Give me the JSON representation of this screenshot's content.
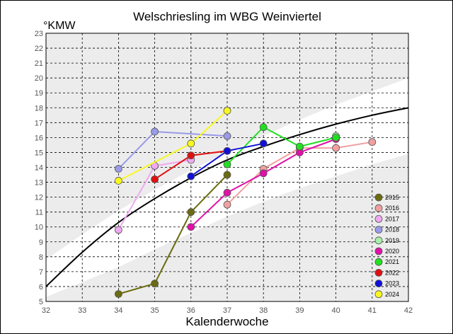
{
  "chart_data": {
    "type": "line",
    "title": "Welschriesling im WBG Weinviertel",
    "ylabel": "°KMW",
    "xlabel": "Kalenderwoche",
    "xlim": [
      32,
      42
    ],
    "ylim": [
      5,
      23
    ],
    "x_ticks": [
      32,
      33,
      34,
      35,
      36,
      37,
      38,
      39,
      40,
      41,
      42
    ],
    "y_ticks": [
      5,
      6,
      7,
      8,
      9,
      10,
      11,
      12,
      13,
      14,
      15,
      16,
      17,
      18,
      19,
      20,
      21,
      22,
      23
    ],
    "grid": true,
    "legend_position": "bottom-right",
    "band_colors": {
      "band": "#ececec",
      "background": "#ffffff",
      "grid": "#000000"
    },
    "bands": [
      {
        "x": [
          32,
          33,
          34,
          35,
          36,
          37,
          38,
          39,
          40,
          41,
          42
        ],
        "y_low": [
          7.8,
          9.5,
          11.1,
          12.5,
          13.8,
          15.0,
          16.1,
          17.2,
          18.2,
          19.1,
          20.0
        ],
        "y_high": [
          23,
          23,
          23,
          23,
          23,
          23,
          23,
          23,
          23,
          23,
          23
        ]
      },
      {
        "x": [
          32,
          33,
          34,
          35,
          36,
          37,
          38,
          39,
          40,
          41,
          42
        ],
        "y_low": [
          5,
          5,
          5,
          5,
          5,
          5,
          5,
          5,
          5,
          5,
          5
        ],
        "y_high": [
          5.3,
          6.3,
          7.3,
          8.5,
          9.6,
          10.7,
          11.7,
          12.6,
          13.4,
          14.2,
          14.9
        ]
      }
    ],
    "reference_curve": {
      "color": "#000000",
      "x": [
        32,
        33,
        34,
        35,
        36,
        37,
        38,
        39,
        40,
        41,
        42
      ],
      "y": [
        6.0,
        8.3,
        10.3,
        11.9,
        13.3,
        14.5,
        15.4,
        16.2,
        16.9,
        17.5,
        18.0
      ]
    },
    "series": [
      {
        "name": "2015",
        "color": "#6b6b10",
        "x": [
          34,
          35,
          36,
          37
        ],
        "y": [
          5.5,
          6.2,
          11.0,
          13.5
        ]
      },
      {
        "name": "2016",
        "color": "#f0a0a0",
        "x": [
          37,
          38,
          39,
          40,
          41
        ],
        "y": [
          11.5,
          13.9,
          15.3,
          15.3,
          15.7
        ]
      },
      {
        "name": "2017",
        "color": "#f0a8f0",
        "x": [
          34,
          35,
          36
        ],
        "y": [
          9.8,
          14.1,
          14.5
        ]
      },
      {
        "name": "2018",
        "color": "#9a9ae8",
        "x": [
          34,
          35,
          37
        ],
        "y": [
          13.9,
          16.4,
          16.1
        ]
      },
      {
        "name": "2019",
        "color": "#a8f0a8",
        "x": [
          40
        ],
        "y": [
          16.1
        ]
      },
      {
        "name": "2020",
        "color": "#e010a8",
        "x": [
          36,
          37,
          38,
          39,
          40
        ],
        "y": [
          10.0,
          12.3,
          13.6,
          15.0,
          15.9
        ]
      },
      {
        "name": "2021",
        "color": "#20e020",
        "x": [
          37,
          38,
          39,
          40
        ],
        "y": [
          14.2,
          16.7,
          15.4,
          16.0
        ]
      },
      {
        "name": "2022",
        "color": "#e01010",
        "x": [
          35,
          36,
          37
        ],
        "y": [
          13.2,
          14.8,
          15.1
        ]
      },
      {
        "name": "2023",
        "color": "#1010d8",
        "x": [
          36,
          37,
          38
        ],
        "y": [
          13.4,
          15.1,
          15.6
        ]
      },
      {
        "name": "2024",
        "color": "#f8f820",
        "x": [
          34,
          36,
          37
        ],
        "y": [
          13.1,
          15.6,
          17.8
        ]
      }
    ]
  }
}
